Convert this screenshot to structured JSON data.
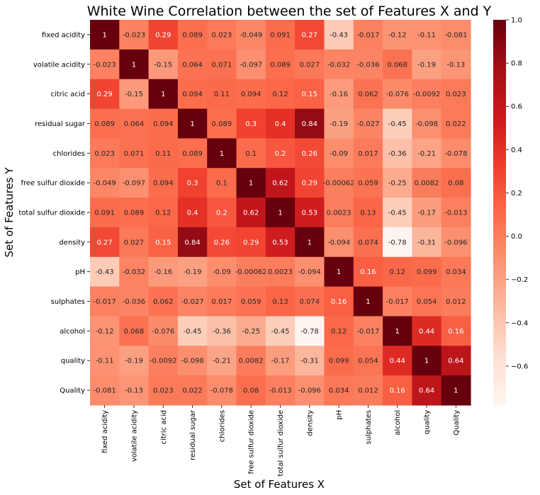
{
  "chart_data": {
    "type": "heatmap",
    "title": "White Wine Correlation between the set of Features X and Y",
    "xlabel": "Set of Features X",
    "ylabel": "Set of Features Y",
    "x_categories": [
      "fixed acidity",
      "volatile acidity",
      "citric acid",
      "residual sugar",
      "chlorides",
      "free sulfur dioxide",
      "total sulfur dioxide",
      "density",
      "pH",
      "sulphates",
      "alcohol",
      "quality",
      "Quality"
    ],
    "y_categories": [
      "fixed acidity",
      "volatile acidity",
      "citric acid",
      "residual sugar",
      "chlorides",
      "free sulfur dioxide",
      "total sulfur dioxide",
      "density",
      "pH",
      "sulphates",
      "alcohol",
      "quality",
      "Quality"
    ],
    "values": [
      [
        1,
        -0.023,
        0.29,
        0.089,
        0.023,
        -0.049,
        0.091,
        0.27,
        -0.43,
        -0.017,
        -0.12,
        -0.11,
        -0.081
      ],
      [
        -0.023,
        1,
        -0.15,
        0.064,
        0.071,
        -0.097,
        0.089,
        0.027,
        -0.032,
        -0.036,
        0.068,
        -0.19,
        -0.13
      ],
      [
        0.29,
        -0.15,
        1,
        0.094,
        0.11,
        0.094,
        0.12,
        0.15,
        -0.16,
        0.062,
        -0.076,
        -0.0092,
        0.023
      ],
      [
        0.089,
        0.064,
        0.094,
        1,
        0.089,
        0.3,
        0.4,
        0.84,
        -0.19,
        -0.027,
        -0.45,
        -0.098,
        0.022
      ],
      [
        0.023,
        0.071,
        0.11,
        0.089,
        1,
        0.1,
        0.2,
        0.26,
        -0.09,
        0.017,
        -0.36,
        -0.21,
        -0.078
      ],
      [
        -0.049,
        -0.097,
        0.094,
        0.3,
        0.1,
        1,
        0.62,
        0.29,
        -0.00062,
        0.059,
        -0.25,
        0.0082,
        0.08
      ],
      [
        0.091,
        0.089,
        0.12,
        0.4,
        0.2,
        0.62,
        1,
        0.53,
        0.0023,
        0.13,
        -0.45,
        -0.17,
        -0.013
      ],
      [
        0.27,
        0.027,
        0.15,
        0.84,
        0.26,
        0.29,
        0.53,
        1,
        -0.094,
        0.074,
        -0.78,
        -0.31,
        -0.096
      ],
      [
        -0.43,
        -0.032,
        -0.16,
        -0.19,
        -0.09,
        -0.00062,
        0.0023,
        -0.094,
        1,
        0.16,
        0.12,
        0.099,
        0.034
      ],
      [
        -0.017,
        -0.036,
        0.062,
        -0.027,
        0.017,
        0.059,
        0.13,
        0.074,
        0.16,
        1,
        -0.017,
        0.054,
        0.012
      ],
      [
        -0.12,
        0.068,
        -0.076,
        -0.45,
        -0.36,
        -0.25,
        -0.45,
        -0.78,
        0.12,
        -0.017,
        1,
        0.44,
        0.16
      ],
      [
        -0.11,
        -0.19,
        -0.0092,
        -0.098,
        -0.21,
        0.0082,
        -0.17,
        -0.31,
        0.099,
        0.054,
        0.44,
        1,
        0.64
      ],
      [
        -0.081,
        -0.13,
        0.023,
        0.022,
        -0.078,
        0.08,
        -0.013,
        -0.096,
        0.034,
        0.012,
        0.16,
        0.64,
        1
      ]
    ],
    "value_labels": [
      [
        "1",
        "-0.023",
        "0.29",
        "0.089",
        "0.023",
        "-0.049",
        "0.091",
        "0.27",
        "-0.43",
        "-0.017",
        "-0.12",
        "-0.11",
        "-0.081"
      ],
      [
        "-0.023",
        "1",
        "-0.15",
        "0.064",
        "0.071",
        "-0.097",
        "0.089",
        "0.027",
        "-0.032",
        "-0.036",
        "0.068",
        "-0.19",
        "-0.13"
      ],
      [
        "0.29",
        "-0.15",
        "1",
        "0.094",
        "0.11",
        "0.094",
        "0.12",
        "0.15",
        "-0.16",
        "0.062",
        "-0.076",
        "-0.0092",
        "0.023"
      ],
      [
        "0.089",
        "0.064",
        "0.094",
        "1",
        "0.089",
        "0.3",
        "0.4",
        "0.84",
        "-0.19",
        "-0.027",
        "-0.45",
        "-0.098",
        "0.022"
      ],
      [
        "0.023",
        "0.071",
        "0.11",
        "0.089",
        "1",
        "0.1",
        "0.2",
        "0.26",
        "-0.09",
        "0.017",
        "-0.36",
        "-0.21",
        "-0.078"
      ],
      [
        "-0.049",
        "-0.097",
        "0.094",
        "0.3",
        "0.1",
        "1",
        "0.62",
        "0.29",
        "-0.00062",
        "0.059",
        "-0.25",
        "0.0082",
        "0.08"
      ],
      [
        "0.091",
        "0.089",
        "0.12",
        "0.4",
        "0.2",
        "0.62",
        "1",
        "0.53",
        "0.0023",
        "0.13",
        "-0.45",
        "-0.17",
        "-0.013"
      ],
      [
        "0.27",
        "0.027",
        "0.15",
        "0.84",
        "0.26",
        "0.29",
        "0.53",
        "1",
        "-0.094",
        "0.074",
        "-0.78",
        "-0.31",
        "-0.096"
      ],
      [
        "-0.43",
        "-0.032",
        "-0.16",
        "-0.19",
        "-0.09",
        "-0.00062",
        "0.0023",
        "-0.094",
        "1",
        "0.16",
        "0.12",
        "0.099",
        "0.034"
      ],
      [
        "-0.017",
        "-0.036",
        "0.062",
        "-0.027",
        "0.017",
        "0.059",
        "0.13",
        "0.074",
        "0.16",
        "1",
        "-0.017",
        "0.054",
        "0.012"
      ],
      [
        "-0.12",
        "0.068",
        "-0.076",
        "-0.45",
        "-0.36",
        "-0.25",
        "-0.45",
        "-0.78",
        "0.12",
        "-0.017",
        "1",
        "0.44",
        "0.16"
      ],
      [
        "-0.11",
        "-0.19",
        "-0.0092",
        "-0.098",
        "-0.21",
        "0.0082",
        "-0.17",
        "-0.31",
        "0.099",
        "0.054",
        "0.44",
        "1",
        "0.64"
      ],
      [
        "-0.081",
        "-0.13",
        "0.023",
        "0.022",
        "-0.078",
        "0.08",
        "-0.013",
        "-0.096",
        "0.034",
        "0.012",
        "0.16",
        "0.64",
        "1"
      ]
    ],
    "colorbar": {
      "range": [
        -0.78,
        1.0
      ],
      "ticks": [
        -0.6,
        -0.4,
        -0.2,
        0.0,
        0.2,
        0.4,
        0.6,
        0.8,
        1.0
      ],
      "tick_labels": [
        "−0.6",
        "−0.4",
        "−0.2",
        "0.0",
        "0.2",
        "0.4",
        "0.6",
        "0.8",
        "1.0"
      ]
    },
    "colormap": "Reds",
    "grid": false,
    "legend": "colorbar-right"
  }
}
